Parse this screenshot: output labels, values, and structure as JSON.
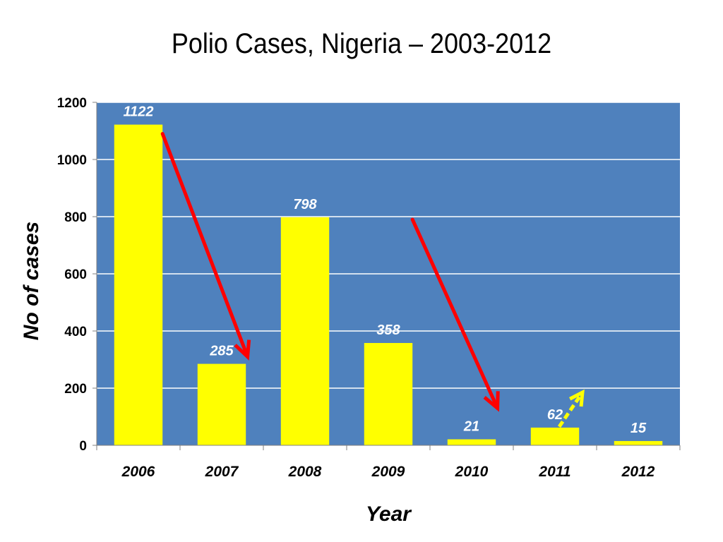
{
  "chart_data": {
    "type": "bar",
    "title": "Polio Cases, Nigeria – 2003-2012",
    "xlabel": "Year",
    "ylabel": "No of cases",
    "categories": [
      "2006",
      "2007",
      "2008",
      "2009",
      "2010",
      "2011",
      "2012"
    ],
    "values": [
      1122,
      285,
      798,
      358,
      21,
      62,
      15
    ],
    "data_labels": [
      "1122",
      "285",
      "798",
      "358",
      "21",
      "62",
      "15"
    ],
    "ylim": [
      0,
      1200
    ],
    "yticks": [
      0,
      200,
      400,
      600,
      800,
      1000,
      1200
    ],
    "ytick_labels": [
      "0",
      "200",
      "400",
      "600",
      "800",
      "1000",
      "1200"
    ],
    "grid": true,
    "legend": "none",
    "colors": {
      "plot_background": "#4f81bd",
      "bar": "#ffff00",
      "gridline": "#ffffff",
      "arrow_down": "#ff0000",
      "arrow_up": "#ffff00",
      "data_label": "#ffffff"
    },
    "annotations": [
      {
        "type": "arrow",
        "direction": "down",
        "color": "red",
        "from_category": "2006",
        "to_category": "2007",
        "from_value": 1090,
        "to_value": 310
      },
      {
        "type": "arrow",
        "direction": "down",
        "color": "red",
        "from_category": "2009",
        "to_category": "2010",
        "from_value": 790,
        "to_value": 130
      },
      {
        "type": "arrow",
        "direction": "up",
        "color": "yellow",
        "from_category": "2011",
        "to_category": "2011",
        "from_value": 60,
        "to_value": 185
      }
    ]
  }
}
